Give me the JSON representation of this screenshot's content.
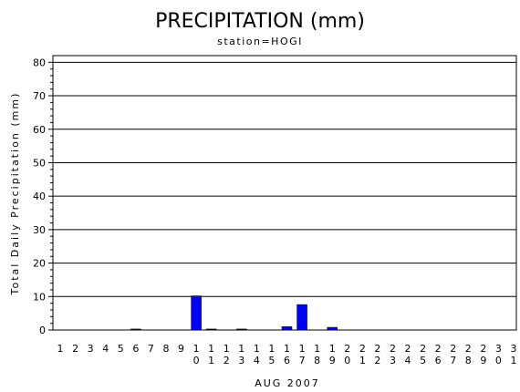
{
  "chart_data": {
    "type": "bar",
    "title": "PRECIPITATION (mm)",
    "subtitle": "station=HOGI",
    "xlabel": "AUG 2007",
    "ylabel": "Total Daily Precipitation (mm)",
    "ylim": [
      0,
      82
    ],
    "yticks": [
      0,
      10,
      20,
      30,
      40,
      50,
      60,
      70,
      80
    ],
    "grid": true,
    "bar_color": "#0000ff",
    "categories": [
      "1",
      "2",
      "3",
      "4",
      "5",
      "6",
      "7",
      "8",
      "9",
      "10",
      "11",
      "12",
      "13",
      "14",
      "15",
      "16",
      "17",
      "18",
      "19",
      "20",
      "21",
      "22",
      "23",
      "24",
      "25",
      "26",
      "27",
      "28",
      "29",
      "30",
      "31"
    ],
    "values": [
      0,
      0,
      0,
      0,
      0,
      0.3,
      0,
      0,
      0,
      10.2,
      0.3,
      0,
      0.3,
      0,
      0,
      1.0,
      7.6,
      0,
      0.8,
      0,
      0,
      0,
      0,
      0,
      0,
      0,
      0,
      0,
      0,
      0,
      0
    ]
  }
}
